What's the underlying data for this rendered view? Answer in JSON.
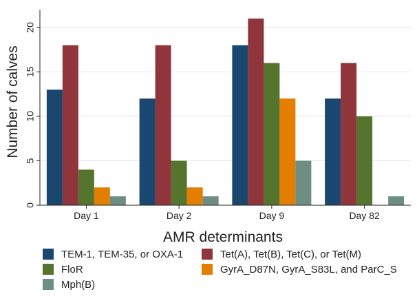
{
  "chart_data": {
    "type": "bar",
    "title": "",
    "xlabel": "AMR determinants",
    "ylabel": "Number of calves",
    "ylim": [
      0,
      22
    ],
    "yticks": [
      0,
      5,
      10,
      15,
      20
    ],
    "grid": true,
    "legend_position": "bottom",
    "categories": [
      "Day 1",
      "Day 2",
      "Day 9",
      "Day 82"
    ],
    "series": [
      {
        "name": "TEM-1, TEM-35, or OXA-1",
        "color": "#1a476f",
        "values": [
          13,
          12,
          18,
          12
        ]
      },
      {
        "name": "Tet(A), Tet(B), Tet(C), or Tet(M)",
        "color": "#90353b",
        "values": [
          18,
          18,
          21,
          16
        ]
      },
      {
        "name": "FloR",
        "color": "#55752f",
        "values": [
          4,
          5,
          16,
          10
        ]
      },
      {
        "name": "GyrA_D87N, GyrA_S83L, and ParC_S",
        "color": "#e37e00",
        "values": [
          2,
          2,
          12,
          0
        ]
      },
      {
        "name": "Mph(B)",
        "color": "#6e8e84",
        "values": [
          1,
          1,
          5,
          1
        ]
      }
    ]
  }
}
